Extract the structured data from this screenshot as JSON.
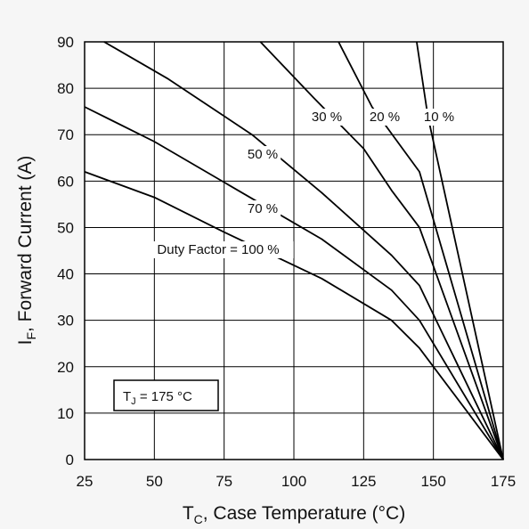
{
  "chart_data": {
    "type": "line",
    "xlabel": "T",
    "xlabel_sub": "C",
    "xlabel_rest": ", Case Temperature (°C)",
    "ylabel": "I",
    "ylabel_sub": "F",
    "ylabel_rest": ", Forward Current (A)",
    "xlim": [
      25,
      175
    ],
    "ylim": [
      0,
      90
    ],
    "x_ticks": [
      "25",
      "50",
      "75",
      "100",
      "125",
      "150",
      "175"
    ],
    "y_ticks": [
      "0",
      "10",
      "20",
      "30",
      "40",
      "50",
      "60",
      "70",
      "80",
      "90"
    ],
    "grid": true,
    "annotation": {
      "main": "T",
      "sub": "J",
      "rest": " = 175 °C"
    },
    "series": [
      {
        "label": "Duty Factor = 100 %",
        "x": [
          25,
          50,
          75,
          110,
          135,
          145,
          175
        ],
        "y": [
          62,
          56.5,
          49,
          39,
          30,
          24,
          0
        ]
      },
      {
        "label": "70 %",
        "x": [
          25,
          50,
          80,
          110,
          135,
          145,
          175
        ],
        "y": [
          76,
          68.5,
          58,
          47.5,
          36.5,
          30,
          0
        ]
      },
      {
        "label": "50 %",
        "x": [
          32,
          55,
          85,
          110,
          135,
          145,
          175
        ],
        "y": [
          90,
          82,
          70,
          57.5,
          44,
          37.5,
          0
        ]
      },
      {
        "label": "30 %",
        "x": [
          88,
          107,
          125,
          135,
          145,
          175
        ],
        "y": [
          90,
          78,
          67,
          58,
          50,
          0
        ]
      },
      {
        "label": "20 %",
        "x": [
          116,
          128,
          145,
          175
        ],
        "y": [
          90,
          76,
          62,
          0
        ]
      },
      {
        "label": "10 %",
        "x": [
          144,
          148,
          175
        ],
        "y": [
          90,
          74,
          0
        ]
      }
    ]
  }
}
